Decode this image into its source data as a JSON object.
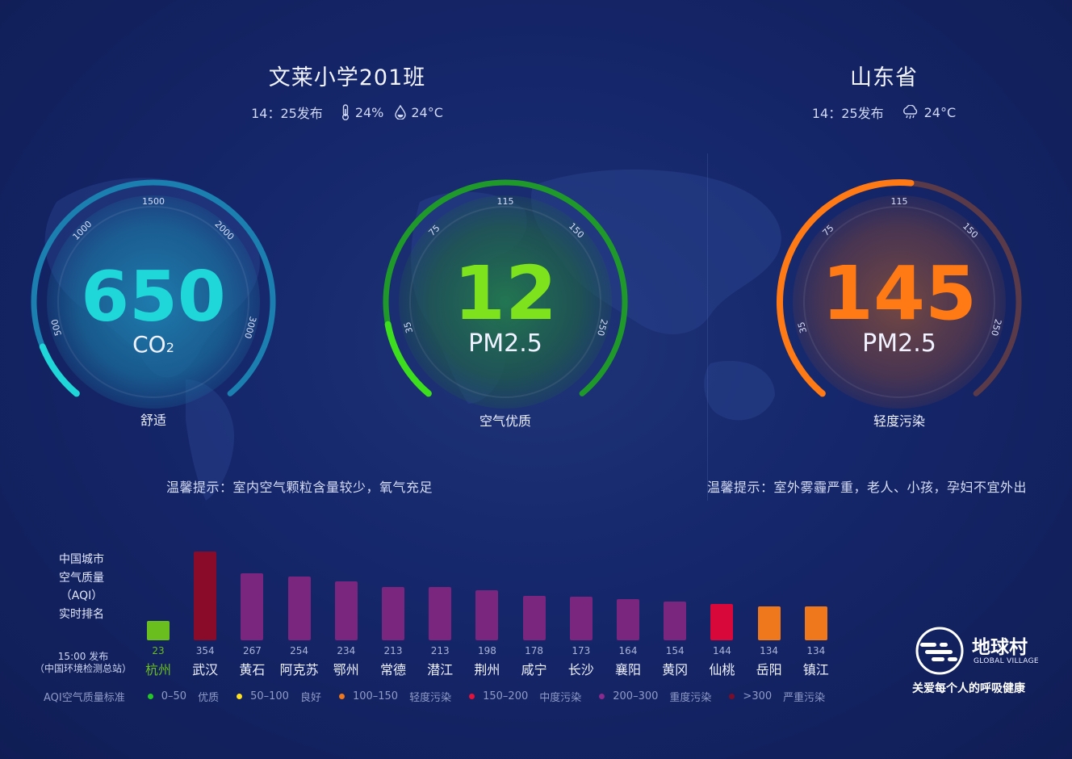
{
  "left": {
    "title": "文莱小学201班",
    "time": "14：25发布",
    "humidity": "24%",
    "temperature": "24°C"
  },
  "right": {
    "title": "山东省",
    "time": "14：25发布",
    "temperature": "24°C"
  },
  "gauges": {
    "co2": {
      "value": "650",
      "unit_main": "CO",
      "unit_sub": "2",
      "status": "舒适",
      "ticks": [
        "500",
        "1000",
        "1500",
        "2000",
        "3000"
      ],
      "fraction": 0.1,
      "color": "#1fd6d8"
    },
    "pm_indoor": {
      "value": "12",
      "unit": "PM2.5",
      "status": "空气优质",
      "ticks": [
        "35",
        "75",
        "115",
        "150",
        "250"
      ],
      "fraction": 0.14,
      "color": "#3cde1e"
    },
    "pm_outdoor": {
      "value": "145",
      "unit": "PM2.5",
      "status": "轻度污染",
      "ticks": [
        "35",
        "75",
        "115",
        "150",
        "250"
      ],
      "fraction": 0.52,
      "color": "#ff7a14"
    }
  },
  "tips": {
    "left": "温馨提示：室内空气颗粒含量较少，氧气充足",
    "right": "温馨提示：室外雾霾严重，老人、小孩，孕妇不宜外出"
  },
  "ranking": {
    "title_lines": [
      "中国城市",
      "空气质量",
      "（AQI）",
      "实时排名"
    ],
    "time": "15:00 发布",
    "source": "（中国环境检测总站）"
  },
  "chart_data": {
    "type": "bar",
    "categories": [
      "杭州",
      "武汉",
      "黄石",
      "阿克苏",
      "鄂州",
      "常德",
      "潜江",
      "荆州",
      "咸宁",
      "长沙",
      "襄阳",
      "黄冈",
      "仙桃",
      "岳阳",
      "镇江"
    ],
    "values": [
      23,
      354,
      267,
      254,
      234,
      213,
      213,
      198,
      178,
      173,
      164,
      154,
      144,
      134,
      134
    ],
    "colors": [
      "#6abf1e",
      "#8a0a2a",
      "#7a257e",
      "#7a257e",
      "#7a257e",
      "#7a257e",
      "#7a257e",
      "#7a257e",
      "#7a257e",
      "#7a257e",
      "#7a257e",
      "#7a257e",
      "#d8083a",
      "#f0781c",
      "#f0781c"
    ],
    "highlight_color": "#6abf1e"
  },
  "legend": {
    "title": "AQI空气质量标准",
    "items": [
      {
        "range": "0–50",
        "label": "优质",
        "color": "#23c824"
      },
      {
        "range": "50–100",
        "label": "良好",
        "color": "#ffe01c"
      },
      {
        "range": "100–150",
        "label": "轻度污染",
        "color": "#f0781c"
      },
      {
        "range": "150–200",
        "label": "中度污染",
        "color": "#e3123a"
      },
      {
        "range": "200–300",
        "label": "重度污染",
        "color": "#8a2a8e"
      },
      {
        "range": ">300",
        "label": "严重污染",
        "color": "#7a0d2a"
      }
    ]
  },
  "brand": {
    "name": "地球村",
    "en": "GLOBAL VILLAGE",
    "slogan": "关爱每个人的呼吸健康"
  }
}
